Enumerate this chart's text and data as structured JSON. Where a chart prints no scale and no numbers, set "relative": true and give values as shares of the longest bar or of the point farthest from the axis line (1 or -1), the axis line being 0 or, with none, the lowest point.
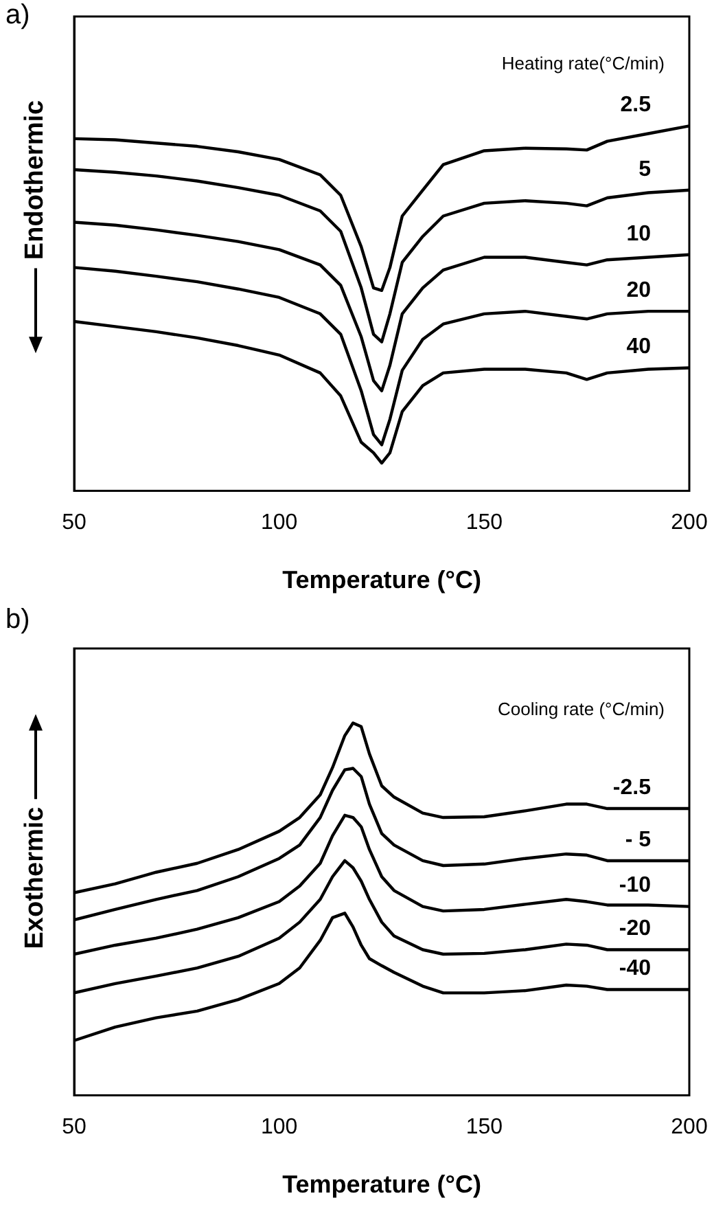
{
  "chart_data": [
    {
      "type": "line",
      "title": "a)",
      "xlabel": "Temperature (°C)",
      "ylabel": "Endothermic",
      "legend_title": "Heating rate(°C/min)",
      "relative": true,
      "x": [
        50,
        60,
        70,
        80,
        90,
        100,
        110,
        115,
        120,
        123,
        125,
        127,
        130,
        135,
        140,
        150,
        160,
        170,
        175,
        180,
        190,
        200
      ],
      "xlim": [
        50,
        200
      ],
      "xticks": [
        50,
        100,
        150,
        200
      ],
      "tick_labels": "x",
      "grid": false,
      "legend": false,
      "marker": "none",
      "line_style": "solid",
      "series": [
        {
          "name": "2.5",
          "color": "#000000",
          "values": [
            0.965,
            0.962,
            0.953,
            0.944,
            0.929,
            0.908,
            0.866,
            0.81,
            0.669,
            0.556,
            0.549,
            0.612,
            0.753,
            0.824,
            0.894,
            0.932,
            0.939,
            0.937,
            0.934,
            0.958,
            0.979,
            1
          ]
        },
        {
          "name": "5",
          "color": "#000000",
          "values": [
            0.88,
            0.873,
            0.863,
            0.849,
            0.831,
            0.81,
            0.767,
            0.711,
            0.556,
            0.429,
            0.408,
            0.485,
            0.626,
            0.697,
            0.753,
            0.788,
            0.795,
            0.788,
            0.781,
            0.803,
            0.817,
            0.824
          ]
        },
        {
          "name": "10",
          "color": "#000000",
          "values": [
            0.736,
            0.728,
            0.715,
            0.7,
            0.683,
            0.661,
            0.619,
            0.563,
            0.422,
            0.302,
            0.274,
            0.344,
            0.485,
            0.556,
            0.605,
            0.64,
            0.64,
            0.626,
            0.619,
            0.633,
            0.64,
            0.647
          ]
        },
        {
          "name": "20",
          "color": "#000000",
          "values": [
            0.612,
            0.602,
            0.588,
            0.573,
            0.553,
            0.53,
            0.485,
            0.429,
            0.274,
            0.154,
            0.126,
            0.196,
            0.33,
            0.415,
            0.457,
            0.485,
            0.492,
            0.478,
            0.471,
            0.485,
            0.492,
            0.492
          ]
        },
        {
          "name": "40",
          "color": "#000000",
          "values": [
            0.464,
            0.45,
            0.436,
            0.419,
            0.398,
            0.372,
            0.323,
            0.26,
            0.133,
            0.104,
            0.076,
            0.104,
            0.217,
            0.288,
            0.323,
            0.333,
            0.333,
            0.323,
            0.305,
            0.323,
            0.333,
            0.337
          ]
        }
      ]
    },
    {
      "type": "line",
      "title": "b)",
      "xlabel": "Temperature (°C)",
      "ylabel": "Exothermic",
      "legend_title": "Cooling rate (°C/min)",
      "relative": true,
      "x": [
        50,
        60,
        70,
        80,
        90,
        100,
        105,
        110,
        113,
        116,
        118,
        120,
        122,
        125,
        128,
        135,
        140,
        150,
        160,
        170,
        175,
        180,
        190,
        200
      ],
      "xlim": [
        50,
        200
      ],
      "xticks": [
        50,
        100,
        150,
        200
      ],
      "tick_labels": "x",
      "grid": false,
      "legend": false,
      "marker": "none",
      "line_style": "solid",
      "series": [
        {
          "name": "-2.5",
          "color": "#000000",
          "values": [
            0.544,
            0.568,
            0.599,
            0.623,
            0.66,
            0.709,
            0.746,
            0.807,
            0.88,
            0.966,
            1,
            0.99,
            0.917,
            0.831,
            0.801,
            0.758,
            0.746,
            0.748,
            0.764,
            0.782,
            0.782,
            0.77,
            0.77,
            0.77
          ]
        },
        {
          "name": "- 5",
          "color": "#000000",
          "values": [
            0.471,
            0.499,
            0.526,
            0.55,
            0.587,
            0.636,
            0.672,
            0.746,
            0.819,
            0.874,
            0.878,
            0.856,
            0.782,
            0.703,
            0.672,
            0.63,
            0.617,
            0.621,
            0.636,
            0.648,
            0.645,
            0.63,
            0.63,
            0.63
          ]
        },
        {
          "name": "-10",
          "color": "#000000",
          "values": [
            0.379,
            0.403,
            0.422,
            0.446,
            0.477,
            0.52,
            0.562,
            0.623,
            0.697,
            0.752,
            0.746,
            0.721,
            0.66,
            0.587,
            0.55,
            0.507,
            0.495,
            0.499,
            0.513,
            0.526,
            0.52,
            0.511,
            0.511,
            0.507
          ]
        },
        {
          "name": "-20",
          "color": "#000000",
          "values": [
            0.275,
            0.3,
            0.32,
            0.342,
            0.373,
            0.422,
            0.465,
            0.526,
            0.587,
            0.63,
            0.611,
            0.575,
            0.526,
            0.465,
            0.428,
            0.391,
            0.379,
            0.381,
            0.391,
            0.406,
            0.403,
            0.391,
            0.391,
            0.391
          ]
        },
        {
          "name": "-40",
          "color": "#000000",
          "values": [
            0.147,
            0.183,
            0.208,
            0.226,
            0.257,
            0.3,
            0.342,
            0.416,
            0.477,
            0.489,
            0.452,
            0.403,
            0.367,
            0.348,
            0.33,
            0.293,
            0.275,
            0.275,
            0.281,
            0.296,
            0.293,
            0.284,
            0.284,
            0.284
          ]
        }
      ]
    }
  ]
}
